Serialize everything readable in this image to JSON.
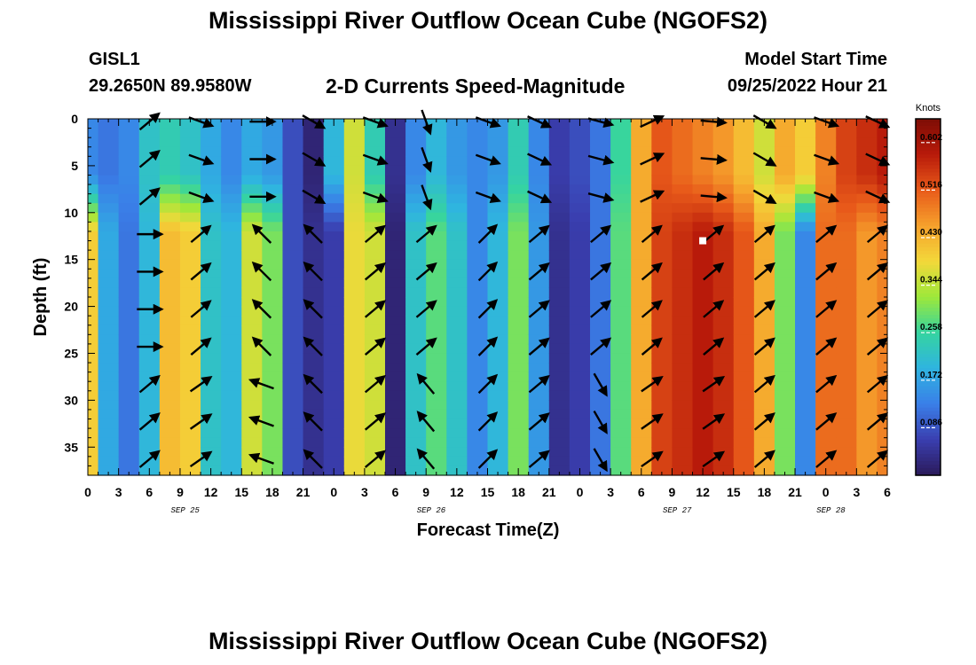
{
  "page": {
    "title": "Mississippi River Outflow Ocean Cube (NGOFS2)",
    "station": "GISL1",
    "coords": "29.2650N  89.9580W",
    "subtitle": "2-D Currents Speed-Magnitude",
    "model_start_label": "Model Start Time",
    "model_start_value": "09/25/2022 Hour 21",
    "bottom_title": "Mississippi River Outflow Ocean Cube (NGOFS2)"
  },
  "chart_data": {
    "type": "heatmap",
    "xlabel": "Forecast Time(Z)",
    "ylabel": "Depth (ft)",
    "x_tick_labels": [
      "0",
      "3",
      "6",
      "9",
      "12",
      "15",
      "18",
      "21",
      "0",
      "3",
      "6",
      "9",
      "12",
      "15",
      "18",
      "21",
      "0",
      "3",
      "6",
      "9",
      "12",
      "15",
      "18",
      "21",
      "0",
      "3",
      "6"
    ],
    "x_range_hours": [
      0,
      78
    ],
    "date_labels": [
      {
        "text": "SEP 25",
        "hour": 9.5
      },
      {
        "text": "SEP 26",
        "hour": 33.5
      },
      {
        "text": "SEP 27",
        "hour": 57.5
      },
      {
        "text": "SEP 28",
        "hour": 72.5
      }
    ],
    "y_ticks": [
      0,
      5,
      10,
      15,
      20,
      25,
      30,
      35
    ],
    "y_range": [
      0,
      38
    ],
    "y_inverted": true,
    "colorbar": {
      "title": "Knots",
      "ticks": [
        "0.602",
        "0.516",
        "0.430",
        "0.344",
        "0.258",
        "0.172",
        "0.086"
      ],
      "tick_values": [
        0.602,
        0.516,
        0.43,
        0.344,
        0.258,
        0.172,
        0.086
      ],
      "range": [
        0,
        0.645
      ],
      "colors": [
        "#2b1a5a",
        "#3a3fb0",
        "#3a7fe8",
        "#2fb4e0",
        "#35d4a0",
        "#9ee83a",
        "#f3d83a",
        "#f6a12c",
        "#e85a1a",
        "#b81a0a",
        "#7d0d05"
      ]
    },
    "marker": {
      "hour": 60,
      "depth": 13
    },
    "speed_profiles": [
      {
        "hour": 0,
        "surface": 0.14,
        "deep": 0.4
      },
      {
        "hour": 2,
        "surface": 0.12,
        "deep": 0.18
      },
      {
        "hour": 4,
        "surface": 0.14,
        "deep": 0.12
      },
      {
        "hour": 6,
        "surface": 0.22,
        "deep": 0.2
      },
      {
        "hour": 8,
        "surface": 0.24,
        "deep": 0.42
      },
      {
        "hour": 10,
        "surface": 0.22,
        "deep": 0.4
      },
      {
        "hour": 12,
        "surface": 0.18,
        "deep": 0.22
      },
      {
        "hour": 14,
        "surface": 0.14,
        "deep": 0.2
      },
      {
        "hour": 16,
        "surface": 0.18,
        "deep": 0.36
      },
      {
        "hour": 18,
        "surface": 0.16,
        "deep": 0.3
      },
      {
        "hour": 20,
        "surface": 0.08,
        "deep": 0.08
      },
      {
        "hour": 22,
        "surface": 0.02,
        "deep": 0.04
      },
      {
        "hour": 24,
        "surface": 0.2,
        "deep": 0.06
      },
      {
        "hour": 26,
        "surface": 0.36,
        "deep": 0.38
      },
      {
        "hour": 28,
        "surface": 0.24,
        "deep": 0.36
      },
      {
        "hour": 30,
        "surface": 0.04,
        "deep": 0.02
      },
      {
        "hour": 32,
        "surface": 0.14,
        "deep": 0.22
      },
      {
        "hour": 34,
        "surface": 0.2,
        "deep": 0.28
      },
      {
        "hour": 36,
        "surface": 0.16,
        "deep": 0.22
      },
      {
        "hour": 38,
        "surface": 0.14,
        "deep": 0.14
      },
      {
        "hour": 40,
        "surface": 0.16,
        "deep": 0.2
      },
      {
        "hour": 42,
        "surface": 0.24,
        "deep": 0.3
      },
      {
        "hour": 44,
        "surface": 0.14,
        "deep": 0.16
      },
      {
        "hour": 46,
        "surface": 0.06,
        "deep": 0.04
      },
      {
        "hour": 48,
        "surface": 0.08,
        "deep": 0.06
      },
      {
        "hour": 50,
        "surface": 0.12,
        "deep": 0.12
      },
      {
        "hour": 52,
        "surface": 0.26,
        "deep": 0.28
      },
      {
        "hour": 54,
        "surface": 0.44,
        "deep": 0.44
      },
      {
        "hour": 56,
        "surface": 0.52,
        "deep": 0.54
      },
      {
        "hour": 58,
        "surface": 0.5,
        "deep": 0.56
      },
      {
        "hour": 60,
        "surface": 0.48,
        "deep": 0.58
      },
      {
        "hour": 62,
        "surface": 0.46,
        "deep": 0.56
      },
      {
        "hour": 64,
        "surface": 0.42,
        "deep": 0.52
      },
      {
        "hour": 66,
        "surface": 0.36,
        "deep": 0.44
      },
      {
        "hour": 68,
        "surface": 0.44,
        "deep": 0.3
      },
      {
        "hour": 70,
        "surface": 0.4,
        "deep": 0.14
      },
      {
        "hour": 72,
        "surface": 0.48,
        "deep": 0.5
      },
      {
        "hour": 74,
        "surface": 0.54,
        "deep": 0.5
      },
      {
        "hour": 76,
        "surface": 0.56,
        "deep": 0.46
      },
      {
        "hour": 78,
        "surface": 0.58,
        "deep": 0.48
      }
    ],
    "vector_depths": [
      0,
      4,
      8,
      12,
      16,
      20,
      24,
      28,
      32,
      36
    ],
    "vector_columns": [
      {
        "hour": 6,
        "surface_deg": -40,
        "mid_deg": 0,
        "deep_deg": -40
      },
      {
        "hour": 11,
        "surface_deg": 20,
        "mid_deg": -40,
        "deep_deg": -35
      },
      {
        "hour": 17,
        "surface_deg": 0,
        "mid_deg": -135,
        "deep_deg": -160
      },
      {
        "hour": 22,
        "surface_deg": 30,
        "mid_deg": -135,
        "deep_deg": -135
      },
      {
        "hour": 28,
        "surface_deg": 20,
        "mid_deg": -40,
        "deep_deg": -40
      },
      {
        "hour": 33,
        "surface_deg": 70,
        "mid_deg": -40,
        "deep_deg": 230
      },
      {
        "hour": 39,
        "surface_deg": 20,
        "mid_deg": -45,
        "deep_deg": -45
      },
      {
        "hour": 44,
        "surface_deg": 25,
        "mid_deg": -40,
        "deep_deg": -40
      },
      {
        "hour": 50,
        "surface_deg": 15,
        "mid_deg": -40,
        "deep_deg": 60
      },
      {
        "hour": 55,
        "surface_deg": -25,
        "mid_deg": -40,
        "deep_deg": -35
      },
      {
        "hour": 61,
        "surface_deg": 5,
        "mid_deg": -40,
        "deep_deg": -35
      },
      {
        "hour": 66,
        "surface_deg": 30,
        "mid_deg": -40,
        "deep_deg": -40
      },
      {
        "hour": 72,
        "surface_deg": 20,
        "mid_deg": -40,
        "deep_deg": -40
      },
      {
        "hour": 77,
        "surface_deg": 25,
        "mid_deg": -40,
        "deep_deg": -40
      }
    ]
  }
}
